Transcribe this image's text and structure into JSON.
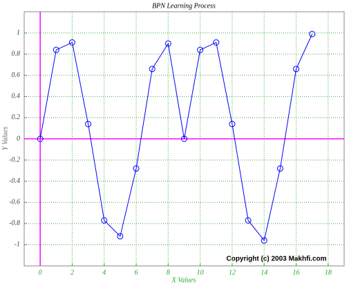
{
  "chart_data": {
    "type": "line",
    "title": "BPN Learning Process",
    "x_label": "X Values",
    "y_label": "Y Values",
    "annotation": "Copyright (c) 2003 Makhfi.com",
    "x": [
      0,
      1,
      2,
      3,
      4,
      5,
      6,
      7,
      8,
      9,
      10,
      11,
      12,
      13,
      14,
      15,
      16,
      17
    ],
    "values": [
      0,
      0.84,
      0.91,
      0.14,
      -0.77,
      -0.92,
      -0.28,
      0.66,
      0.9,
      0,
      0.84,
      0.91,
      0.14,
      -0.77,
      -0.96,
      -0.28,
      0.66,
      0.99
    ],
    "color": "#0000ff",
    "xlim": [
      -1,
      19
    ],
    "ylim": [
      -1.2,
      1.2
    ],
    "xticks": [
      0,
      2,
      4,
      6,
      8,
      10,
      12,
      14,
      16,
      18
    ],
    "yticks": [
      -1,
      -0.8,
      -0.6,
      -0.4,
      -0.2,
      0,
      0.2,
      0.4,
      0.6,
      0.8,
      1
    ],
    "grid": true,
    "axis_color": "#ff00ff",
    "grid_color": "#33aa33"
  }
}
